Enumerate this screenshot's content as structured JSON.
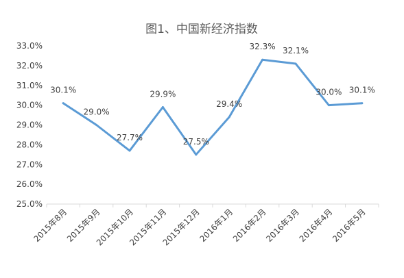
{
  "chart_data": {
    "type": "line",
    "title": "图1、中国新经济指数",
    "xlabel": "",
    "ylabel": "",
    "categories": [
      "2015年8月",
      "2015年9月",
      "2015年10月",
      "2015年11月",
      "2015年12月",
      "2016年1月",
      "2016年2月",
      "2016年3月",
      "2016年4月",
      "2016年5月"
    ],
    "series": [
      {
        "values": [
          30.1,
          29.0,
          27.7,
          29.9,
          27.5,
          29.4,
          32.3,
          32.1,
          30.0,
          30.1
        ]
      }
    ],
    "data_labels": [
      "30.1%",
      "29.0%",
      "27.7%",
      "29.9%",
      "27.5%",
      "29.4%",
      "32.3%",
      "32.1%",
      "30.0%",
      "30.1%"
    ],
    "ylim": [
      25.0,
      33.0
    ],
    "yticks": [
      "25.0%",
      "26.0%",
      "27.0%",
      "28.0%",
      "29.0%",
      "30.0%",
      "31.0%",
      "32.0%",
      "33.0%"
    ],
    "grid": false,
    "legend": "none",
    "colors": {
      "line": "#5b9bd5",
      "axis": "#d9d9d9",
      "text": "#404040",
      "title": "#595959"
    }
  }
}
